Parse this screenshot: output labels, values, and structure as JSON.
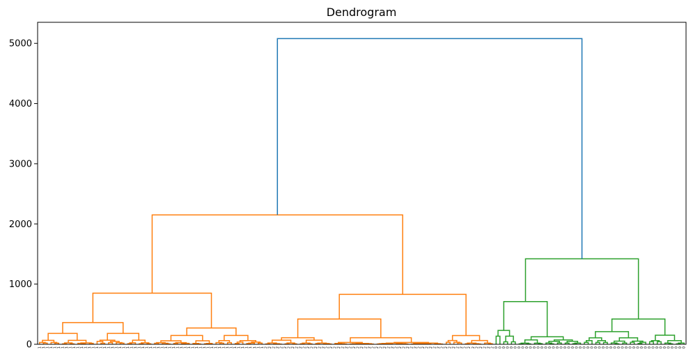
{
  "chart_data": {
    "type": "dendrogram",
    "title": "Dendrogram",
    "xlabel": "",
    "ylabel": "",
    "ylim": [
      0,
      5350
    ],
    "yticks": [
      0,
      1000,
      2000,
      3000,
      4000,
      5000
    ],
    "grid": false,
    "colors": {
      "cluster_1": "#ff7f0e",
      "cluster_0": "#2ca02c",
      "root": "#1f77b4",
      "axis": "#000000"
    },
    "root_merge_height": 5080,
    "leaf_clusters": [
      {
        "label": "1",
        "leaves": 59,
        "color": "#ff7f0e"
      },
      {
        "label": "2",
        "leaves": 60,
        "color": "#ff7f0e"
      },
      {
        "label": "0",
        "leaves": 50,
        "color": "#2ca02c"
      }
    ],
    "major_merges": [
      {
        "cluster": "orange",
        "height": 2150,
        "children": [
          "orange-left",
          "orange-right"
        ]
      },
      {
        "cluster": "orange-left",
        "height": 850,
        "children": [
          "A",
          "B"
        ]
      },
      {
        "cluster": "orange-right",
        "height": 830,
        "children": [
          "C",
          "D"
        ]
      },
      {
        "cluster": "green",
        "height": 1420,
        "children": [
          "green-left",
          "green-right"
        ]
      },
      {
        "cluster": "green-left",
        "height": 710,
        "children": [
          "E",
          "F"
        ]
      },
      {
        "cluster": "green-right",
        "height": 420,
        "children": [
          "G",
          "H"
        ]
      }
    ]
  }
}
